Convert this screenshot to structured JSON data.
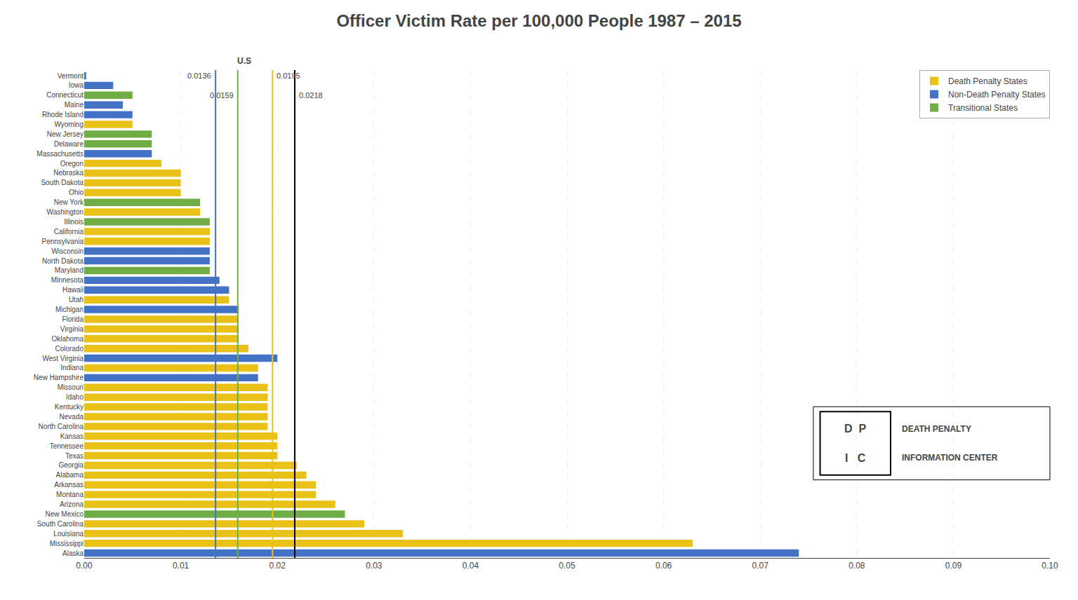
{
  "chart_data": {
    "type": "bar",
    "orientation": "horizontal",
    "title": "Officer Victim Rate per 100,000 People 1987 – 2015",
    "categories": [
      "Vermont",
      "Iowa",
      "Connecticut",
      "Maine",
      "Rhode Island",
      "Wyoming",
      "New Jersey",
      "Delaware",
      "Massachusetts",
      "Oregon",
      "Nebraska",
      "South Dakota",
      "Ohio",
      "New York",
      "Washington",
      "Illinois",
      "California",
      "Pennsylvania",
      "Wisconsin",
      "North Dakota",
      "Maryland",
      "Minnesota",
      "Hawaii",
      "Utah",
      "Michigan",
      "Florida",
      "Virginia",
      "Oklahoma",
      "Colorado",
      "West Virginia",
      "Indiana",
      "New Hampshire",
      "Missouri",
      "Idaho",
      "Kentucky",
      "Nevada",
      "North Carolina",
      "Kansas",
      "Tennessee",
      "Texas",
      "Georgia",
      "Alabama",
      "Arkansas",
      "Montana",
      "Arizona",
      "New Mexico",
      "South Carolina",
      "Louisiana",
      "Mississippi",
      "Alaska"
    ],
    "series": [
      {
        "name": "Death Penalty States",
        "color": "#EAC117",
        "values": [
          null,
          null,
          null,
          null,
          null,
          0.005,
          null,
          null,
          null,
          0.008,
          0.01,
          0.01,
          0.01,
          null,
          0.012,
          null,
          0.013,
          0.013,
          null,
          null,
          null,
          null,
          null,
          0.015,
          null,
          0.016,
          0.016,
          0.016,
          0.017,
          null,
          0.018,
          null,
          0.019,
          0.019,
          0.019,
          0.019,
          0.019,
          0.02,
          0.02,
          0.02,
          0.022,
          0.023,
          0.024,
          0.024,
          0.026,
          null,
          0.029,
          0.033,
          0.063,
          null
        ]
      },
      {
        "name": "Non-Death Penalty States",
        "color": "#4472C4",
        "values": [
          0.0002,
          0.003,
          null,
          0.004,
          0.005,
          null,
          null,
          null,
          0.007,
          null,
          null,
          null,
          null,
          null,
          null,
          null,
          null,
          null,
          0.013,
          0.013,
          null,
          0.014,
          0.015,
          null,
          0.016,
          null,
          null,
          null,
          null,
          0.02,
          null,
          0.018,
          null,
          null,
          null,
          null,
          null,
          null,
          null,
          null,
          null,
          null,
          null,
          null,
          null,
          null,
          null,
          null,
          null,
          0.074
        ]
      },
      {
        "name": "Transitional States",
        "color": "#70AD47",
        "values": [
          null,
          null,
          0.005,
          null,
          null,
          null,
          0.007,
          0.007,
          null,
          null,
          null,
          null,
          null,
          0.012,
          null,
          0.013,
          null,
          null,
          null,
          null,
          0.013,
          null,
          null,
          null,
          null,
          null,
          null,
          null,
          null,
          null,
          null,
          null,
          null,
          null,
          null,
          null,
          null,
          null,
          null,
          null,
          null,
          null,
          null,
          null,
          null,
          0.027,
          null,
          null,
          null,
          null
        ]
      }
    ],
    "xlim": [
      0.0,
      0.1
    ],
    "xticks": [
      {
        "value": 0.0,
        "label": "0.00"
      },
      {
        "value": 0.01,
        "label": "0.01"
      },
      {
        "value": 0.02,
        "label": "0.02"
      },
      {
        "value": 0.03,
        "label": "0.03"
      },
      {
        "value": 0.04,
        "label": "0.04"
      },
      {
        "value": 0.05,
        "label": "0.05"
      },
      {
        "value": 0.06,
        "label": "0.06"
      },
      {
        "value": 0.07,
        "label": "0.07"
      },
      {
        "value": 0.08,
        "label": "0.08"
      },
      {
        "value": 0.09,
        "label": "0.09"
      },
      {
        "value": 0.1,
        "label": "0.10"
      }
    ],
    "grid": true,
    "legend": "upper right",
    "reference_lines": [
      {
        "x": 0.0136,
        "color": "#4472C4",
        "label": "0.0136"
      },
      {
        "x": 0.0195,
        "color": "#EAC117",
        "label": "0.0195"
      },
      {
        "x": 0.0159,
        "color": "#70AD47",
        "label": "0.0159"
      },
      {
        "x": 0.0218,
        "color": "black",
        "label": "0.0218"
      }
    ],
    "annotations": [
      "U.S",
      "D  P",
      "I   C",
      "DEATH PENALTY",
      "INFORMATION CENTER"
    ]
  }
}
